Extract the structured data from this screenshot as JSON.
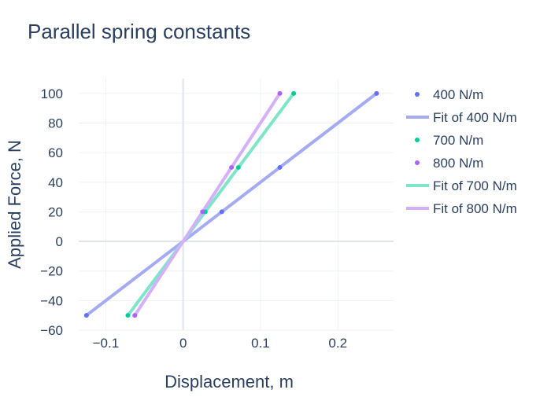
{
  "chart_data": {
    "type": "scatter",
    "title": "Parallel spring constants",
    "xlabel": "Displacement, m",
    "ylabel": "Applied Force, N",
    "xlim": [
      -0.135,
      0.272
    ],
    "ylim": [
      -60,
      110
    ],
    "x_ticks": [
      -0.1,
      0,
      0.1,
      0.2
    ],
    "x_tick_labels": [
      "−0.1",
      "0",
      "0.1",
      "0.2"
    ],
    "y_ticks": [
      -60,
      -40,
      -20,
      0,
      20,
      40,
      60,
      80,
      100
    ],
    "y_tick_labels": [
      "−60",
      "−40",
      "−20",
      "0",
      "20",
      "40",
      "60",
      "80",
      "100"
    ],
    "grid": true,
    "legend_position": "right",
    "series": [
      {
        "name": "400 N/m",
        "kind": "markers",
        "color": "#636efa",
        "x": [
          -0.125,
          0.05,
          0.125,
          0.25
        ],
        "y": [
          -50,
          20,
          50,
          100
        ]
      },
      {
        "name": "Fit of 400 N/m",
        "kind": "line",
        "color": "#a4abf2",
        "x": [
          -0.125,
          0.25
        ],
        "y": [
          -50,
          100
        ]
      },
      {
        "name": "700 N/m",
        "kind": "markers",
        "color": "#00cc96",
        "x": [
          -0.0714,
          0.0286,
          0.0714,
          0.1429
        ],
        "y": [
          -50,
          20,
          50,
          100
        ]
      },
      {
        "name": "800 N/m",
        "kind": "markers",
        "color": "#ab63fa",
        "x": [
          -0.0625,
          0.025,
          0.0625,
          0.125
        ],
        "y": [
          -50,
          20,
          50,
          100
        ]
      },
      {
        "name": "Fit of 700 N/m",
        "kind": "line",
        "color": "#7fe5c8",
        "x": [
          -0.0714,
          0.1429
        ],
        "y": [
          -50,
          100
        ]
      },
      {
        "name": "Fit of 800 N/m",
        "kind": "line",
        "color": "#d4b0fb",
        "x": [
          -0.0625,
          0.125
        ],
        "y": [
          -50,
          100
        ]
      }
    ]
  }
}
